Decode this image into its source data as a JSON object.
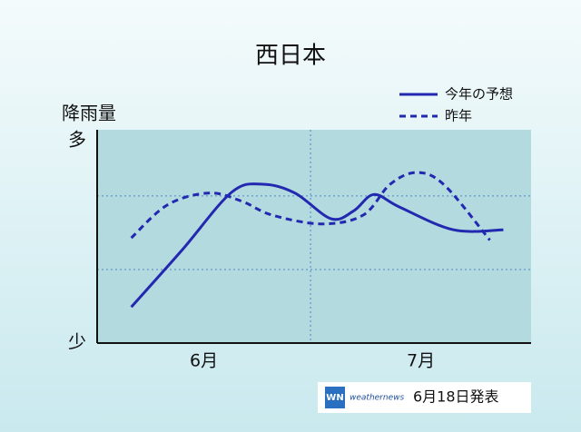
{
  "chart_data": {
    "type": "line",
    "title": "西日本",
    "y_label": "降雨量",
    "xlim": [
      0,
      61
    ],
    "xticks": [
      {
        "value": 15,
        "label": "6月"
      },
      {
        "value": 45.5,
        "label": "7月"
      }
    ],
    "xgrid": [
      30
    ],
    "ylim": [
      0,
      2.9
    ],
    "yticks": [
      {
        "value": 0,
        "label": "少"
      },
      {
        "value": 2.75,
        "label": "多"
      }
    ],
    "ygrid": [
      1,
      2
    ],
    "legend": "top-right",
    "series": [
      {
        "name": "今年の予想",
        "color": "#2228b0",
        "dash": false,
        "x": [
          4.8,
          11.9,
          18.9,
          23.3,
          27.8,
          32.9,
          36.1,
          38.9,
          42.5,
          50.1,
          57.1
        ],
        "values": [
          0.49,
          1.26,
          2.05,
          2.16,
          2.04,
          1.69,
          1.8,
          2.02,
          1.85,
          1.54,
          1.54
        ]
      },
      {
        "name": "昨年",
        "color": "#2228b0",
        "dash": true,
        "x": [
          4.8,
          9.9,
          15.7,
          20.3,
          24.6,
          31.6,
          37.4,
          41.2,
          45.0,
          48.9,
          55.2
        ],
        "values": [
          1.43,
          1.88,
          2.04,
          1.93,
          1.74,
          1.62,
          1.74,
          2.16,
          2.32,
          2.14,
          1.4
        ]
      }
    ],
    "logo": "WN",
    "source": "weathernews",
    "announcement": "6月18日発表"
  }
}
